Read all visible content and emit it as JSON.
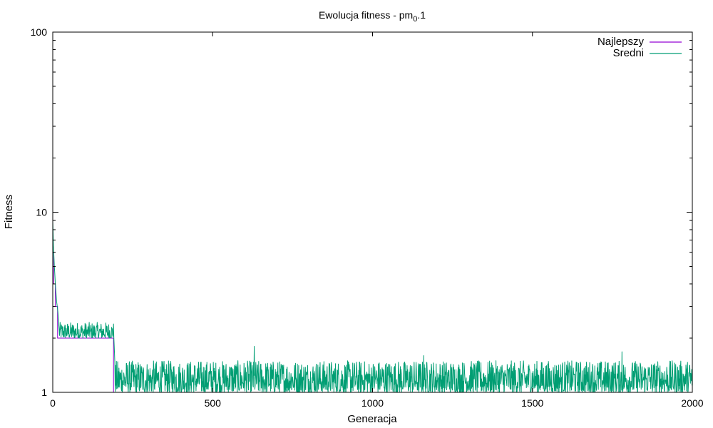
{
  "chart_data": {
    "type": "line",
    "title": "Ewolucja fitness - pm",
    "title_subscript": "0",
    "title_suffix": ".1",
    "xlabel": "Generacja",
    "ylabel": "Fitness",
    "xlim": [
      0,
      2000
    ],
    "ylim": [
      1,
      100
    ],
    "y_scale": "log",
    "x_ticks": [
      0,
      500,
      1000,
      1500,
      2000
    ],
    "y_ticks": [
      1,
      10,
      100
    ],
    "grid": false,
    "legend_position": "top-right",
    "series": [
      {
        "name": "Najlepszy",
        "color": "#9400d3",
        "step": true,
        "points": [
          [
            0,
            6
          ],
          [
            3,
            4
          ],
          [
            8,
            3
          ],
          [
            15,
            2
          ],
          [
            190,
            2
          ],
          [
            190,
            1
          ],
          [
            2000,
            1
          ]
        ]
      },
      {
        "name": "Sredni",
        "color": "#009e73",
        "noisy": true,
        "points": [
          [
            0,
            9
          ],
          [
            2,
            6.5
          ],
          [
            5,
            5
          ],
          [
            8,
            4
          ],
          [
            12,
            3.2
          ],
          [
            16,
            2.8
          ],
          [
            20,
            2.2
          ],
          [
            190,
            2.2
          ],
          [
            195,
            1.3
          ],
          [
            210,
            1.2
          ],
          [
            2000,
            1.2
          ]
        ],
        "noise_segments": [
          {
            "from": 20,
            "to": 190,
            "low": 2.0,
            "high": 2.45
          },
          {
            "from": 195,
            "to": 2000,
            "low": 1.0,
            "high": 1.5
          }
        ],
        "spikes": [
          [
            630,
            1.8
          ],
          [
            1160,
            1.6
          ],
          [
            1780,
            1.68
          ]
        ]
      }
    ]
  }
}
